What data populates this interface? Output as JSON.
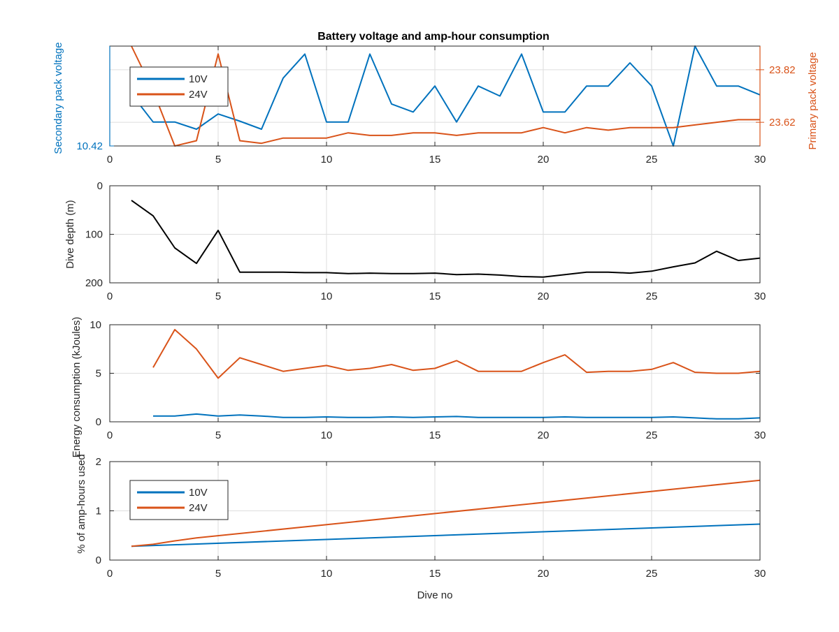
{
  "figure": {
    "title": "Battery voltage and amp-hour consumption",
    "colors": {
      "blue": "#0072bd",
      "orange": "#d95319",
      "black": "#000000",
      "axis": "#262626",
      "grid": "#dedede"
    }
  },
  "chart_data": [
    {
      "id": "voltage",
      "type": "line",
      "title": "Battery voltage and amp-hour consumption",
      "xlabel": "",
      "xlim": [
        0,
        30
      ],
      "xticks": [
        0,
        5,
        10,
        15,
        20,
        25,
        30
      ],
      "ylabel_left": "Secondary pack voltage",
      "ylabel_right": "Primary pack voltage",
      "ylim_left": [
        10.42,
        10.67
      ],
      "yticks_left": [
        10.42
      ],
      "ylim_right": [
        23.53,
        23.91
      ],
      "yticks_right": [
        23.62,
        23.82
      ],
      "grid": true,
      "legend": {
        "position": "top-left",
        "entries": [
          "10V",
          "24V"
        ]
      },
      "x": [
        1,
        2,
        3,
        4,
        5,
        6,
        7,
        8,
        9,
        10,
        11,
        12,
        13,
        14,
        15,
        16,
        17,
        18,
        19,
        20,
        21,
        22,
        23,
        24,
        25,
        26,
        27,
        28,
        29,
        30
      ],
      "series": [
        {
          "name": "10V",
          "axis": "left",
          "color": "#0072bd",
          "values": [
            10.55,
            10.48,
            10.48,
            10.462,
            10.5,
            10.482,
            10.462,
            10.59,
            10.65,
            10.48,
            10.48,
            10.65,
            10.525,
            10.505,
            10.57,
            10.48,
            10.57,
            10.545,
            10.65,
            10.505,
            10.505,
            10.57,
            10.57,
            10.628,
            10.57,
            10.42,
            10.67,
            10.57,
            10.57,
            10.548
          ]
        },
        {
          "name": "24V",
          "axis": "right",
          "color": "#d95319",
          "values": [
            23.91,
            23.74,
            23.53,
            23.55,
            23.88,
            23.55,
            23.54,
            23.56,
            23.56,
            23.56,
            23.58,
            23.57,
            23.57,
            23.58,
            23.58,
            23.57,
            23.58,
            23.58,
            23.58,
            23.6,
            23.58,
            23.6,
            23.59,
            23.6,
            23.6,
            23.6,
            23.61,
            23.62,
            23.63,
            23.63
          ]
        }
      ]
    },
    {
      "id": "depth",
      "type": "line",
      "xlabel": "",
      "ylabel": "Dive depth (m)",
      "xlim": [
        0,
        30
      ],
      "xticks": [
        0,
        5,
        10,
        15,
        20,
        25,
        30
      ],
      "ylim": [
        0,
        200
      ],
      "yticks": [
        0,
        100,
        200
      ],
      "y_reversed": true,
      "grid": true,
      "x": [
        1,
        2,
        3,
        4,
        5,
        6,
        7,
        8,
        9,
        10,
        11,
        12,
        13,
        14,
        15,
        16,
        17,
        18,
        19,
        20,
        21,
        22,
        23,
        24,
        25,
        26,
        27,
        28,
        29,
        30
      ],
      "series": [
        {
          "color": "#000000",
          "values": [
            30,
            62,
            128,
            160,
            92,
            178,
            178,
            178,
            179,
            179,
            181,
            180,
            181,
            181,
            180,
            183,
            182,
            184,
            187,
            188,
            183,
            178,
            178,
            180,
            176,
            167,
            159,
            135,
            154,
            149
          ]
        }
      ]
    },
    {
      "id": "energy",
      "type": "line",
      "xlabel": "",
      "ylabel": "Energy consumption (kJoules)",
      "xlim": [
        0,
        30
      ],
      "xticks": [
        0,
        5,
        10,
        15,
        20,
        25,
        30
      ],
      "ylim": [
        0,
        10
      ],
      "yticks": [
        0,
        5,
        10
      ],
      "grid": true,
      "x": [
        2,
        3,
        4,
        5,
        6,
        7,
        8,
        9,
        10,
        11,
        12,
        13,
        14,
        15,
        16,
        17,
        18,
        19,
        20,
        21,
        22,
        23,
        24,
        25,
        26,
        27,
        28,
        29,
        30
      ],
      "series": [
        {
          "color": "#0072bd",
          "values": [
            0.6,
            0.6,
            0.8,
            0.6,
            0.7,
            0.6,
            0.45,
            0.45,
            0.5,
            0.45,
            0.45,
            0.5,
            0.45,
            0.5,
            0.55,
            0.45,
            0.45,
            0.45,
            0.45,
            0.5,
            0.45,
            0.45,
            0.45,
            0.45,
            0.5,
            0.4,
            0.3,
            0.3,
            0.4
          ]
        },
        {
          "color": "#d95319",
          "values": [
            5.6,
            9.5,
            7.5,
            4.5,
            6.6,
            5.9,
            5.2,
            5.5,
            5.8,
            5.3,
            5.5,
            5.9,
            5.3,
            5.5,
            6.3,
            5.2,
            5.2,
            5.2,
            6.1,
            6.9,
            5.1,
            5.2,
            5.2,
            5.4,
            6.1,
            5.1,
            5.0,
            5.0,
            5.2
          ]
        }
      ]
    },
    {
      "id": "amphours",
      "type": "line",
      "xlabel": "Dive no",
      "ylabel": "% of amp-hours used",
      "xlim": [
        0,
        30
      ],
      "xticks": [
        0,
        5,
        10,
        15,
        20,
        25,
        30
      ],
      "ylim": [
        0,
        2
      ],
      "yticks": [
        0,
        1,
        2
      ],
      "grid": true,
      "legend": {
        "position": "top-left",
        "entries": [
          "10V",
          "24V"
        ]
      },
      "x_range": [
        1,
        30
      ],
      "series": [
        {
          "name": "10V",
          "color": "#0072bd",
          "start": 0.28,
          "end": 0.73
        },
        {
          "name": "24V",
          "color": "#d95319",
          "start": 0.28,
          "end": 1.62,
          "points": [
            [
              1,
              0.28
            ],
            [
              2,
              0.32
            ],
            [
              3,
              0.39
            ],
            [
              4,
              0.45
            ],
            [
              30,
              1.62
            ]
          ]
        }
      ]
    }
  ]
}
